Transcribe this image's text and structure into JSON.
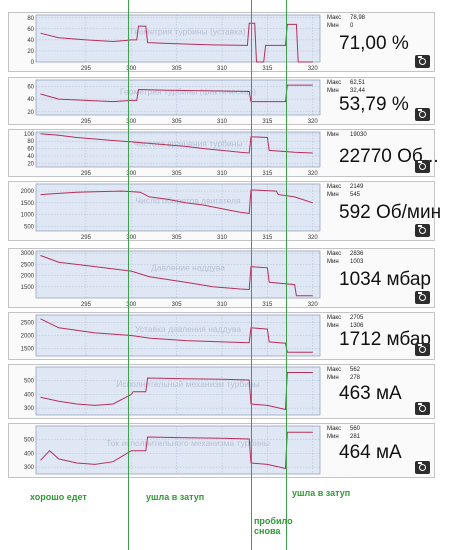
{
  "panels": [
    {
      "title": "Геометрия турбины (уставка)",
      "stats": [
        {
          "k": "Макс",
          "v": "78,98"
        },
        {
          "k": "Мин",
          "v": "0"
        }
      ],
      "value": "71,00 %",
      "yticks": [
        "80",
        "60",
        "40",
        "20",
        "0"
      ],
      "ymin": 0,
      "ymax": 85,
      "show_x": true,
      "series": [
        [
          290,
          52
        ],
        [
          292,
          44
        ],
        [
          295,
          40
        ],
        [
          298,
          37
        ],
        [
          300,
          40
        ],
        [
          300.6,
          40
        ],
        [
          300.8,
          65
        ],
        [
          301.6,
          65
        ],
        [
          301.8,
          35
        ],
        [
          305,
          33
        ],
        [
          309,
          31
        ],
        [
          312.8,
          30
        ],
        [
          313,
          70
        ],
        [
          313.6,
          70
        ],
        [
          313.8,
          0
        ],
        [
          314.6,
          0
        ],
        [
          314.8,
          30
        ],
        [
          317,
          30
        ],
        [
          317.2,
          68
        ],
        [
          318.2,
          68
        ],
        [
          318.4,
          0
        ],
        [
          320,
          0
        ]
      ]
    },
    {
      "title": "Геометрия турбины (фактическая)",
      "stats": [
        {
          "k": "Макс",
          "v": "62,51"
        },
        {
          "k": "Мин",
          "v": "32,44"
        }
      ],
      "value": "53,79 %",
      "yticks": [
        "60",
        "40",
        "20"
      ],
      "ymin": 15,
      "ymax": 70,
      "show_x": true,
      "series": [
        [
          290,
          48
        ],
        [
          292,
          40
        ],
        [
          295,
          38
        ],
        [
          298,
          36
        ],
        [
          300,
          38
        ],
        [
          300.6,
          38
        ],
        [
          300.8,
          55
        ],
        [
          304,
          54
        ],
        [
          308,
          53
        ],
        [
          313,
          52
        ],
        [
          313.2,
          36
        ],
        [
          314,
          36
        ],
        [
          317,
          36
        ],
        [
          317.2,
          62
        ],
        [
          320,
          62
        ]
      ]
    },
    {
      "title": "Частота вращения турбины",
      "stats": [
        {
          "k": "Мин",
          "v": "19030"
        }
      ],
      "value": "22770 Об...",
      "yticks": [
        "100",
        "80",
        "60",
        "40",
        "20"
      ],
      "ymin": 10,
      "ymax": 105,
      "show_x": true,
      "series": [
        [
          290,
          100
        ],
        [
          292,
          96
        ],
        [
          294,
          90
        ],
        [
          296,
          86
        ],
        [
          298,
          82
        ],
        [
          300,
          78
        ],
        [
          302,
          74
        ],
        [
          304,
          70
        ],
        [
          306,
          66
        ],
        [
          308,
          60
        ],
        [
          310,
          55
        ],
        [
          312,
          50
        ],
        [
          313,
          48
        ],
        [
          313.2,
          92
        ],
        [
          315,
          90
        ],
        [
          315.2,
          55
        ],
        [
          318,
          50
        ],
        [
          320,
          48
        ]
      ]
    },
    {
      "title": "Число оборотов двигателя",
      "stats": [
        {
          "k": "Макс",
          "v": "2149"
        },
        {
          "k": "Мин",
          "v": "545"
        }
      ],
      "value": "592 Об/мин",
      "yticks": [
        "2000",
        "1500",
        "1000",
        "500"
      ],
      "ymin": 300,
      "ymax": 2300,
      "show_x": true,
      "series": [
        [
          290,
          1850
        ],
        [
          292,
          1900
        ],
        [
          294,
          1950
        ],
        [
          297,
          1980
        ],
        [
          299,
          2000
        ],
        [
          301,
          1950
        ],
        [
          302,
          1750
        ],
        [
          304,
          1650
        ],
        [
          306,
          1500
        ],
        [
          308,
          1400
        ],
        [
          310,
          1250
        ],
        [
          312,
          1100
        ],
        [
          313,
          1050
        ],
        [
          313.2,
          2050
        ],
        [
          316,
          2000
        ],
        [
          316.2,
          1850
        ],
        [
          318,
          1750
        ],
        [
          320,
          1500
        ]
      ]
    },
    {
      "title": "Давление наддува",
      "stats": [
        {
          "k": "Макс",
          "v": "2836"
        },
        {
          "k": "Мин",
          "v": "1003"
        }
      ],
      "value": "1034 мбар",
      "yticks": [
        "3000",
        "2500",
        "2000",
        "1500"
      ],
      "ymin": 1000,
      "ymax": 3100,
      "show_x": true,
      "series": [
        [
          290,
          2900
        ],
        [
          292,
          2600
        ],
        [
          295,
          2450
        ],
        [
          298,
          2300
        ],
        [
          300,
          2200
        ],
        [
          302,
          1950
        ],
        [
          306,
          1700
        ],
        [
          309,
          1500
        ],
        [
          312,
          1400
        ],
        [
          313,
          1380
        ],
        [
          313.2,
          2400
        ],
        [
          315,
          2350
        ],
        [
          315.2,
          1700
        ],
        [
          318,
          1600
        ],
        [
          318.2,
          1100
        ],
        [
          320,
          1100
        ]
      ]
    },
    {
      "title": "Уставка давления наддува",
      "stats": [
        {
          "k": "Макс",
          "v": "2705"
        },
        {
          "k": "Мин",
          "v": "1306"
        }
      ],
      "value": "1712 мбар",
      "yticks": [
        "2500",
        "2000",
        "1500"
      ],
      "ymin": 1200,
      "ymax": 2800,
      "show_x": false,
      "series": [
        [
          290,
          2650
        ],
        [
          292,
          2300
        ],
        [
          296,
          2100
        ],
        [
          300,
          2000
        ],
        [
          302,
          1900
        ],
        [
          306,
          1800
        ],
        [
          310,
          1750
        ],
        [
          313,
          1720
        ],
        [
          313.2,
          2300
        ],
        [
          315,
          2250
        ],
        [
          315.2,
          1750
        ],
        [
          317,
          1700
        ],
        [
          317.2,
          1350
        ],
        [
          320,
          1350
        ]
      ]
    },
    {
      "title": "Исполнительный механизм турбины",
      "stats": [
        {
          "k": "Макс",
          "v": "562"
        },
        {
          "k": "Мин",
          "v": "278"
        }
      ],
      "value": "463 мА",
      "yticks": [
        "500",
        "400",
        "300"
      ],
      "ymin": 250,
      "ymax": 600,
      "show_x": false,
      "series": [
        [
          290,
          380
        ],
        [
          292,
          350
        ],
        [
          294,
          330
        ],
        [
          296,
          320
        ],
        [
          298,
          330
        ],
        [
          300,
          400
        ],
        [
          300.2,
          420
        ],
        [
          301.6,
          420
        ],
        [
          301.8,
          520
        ],
        [
          306,
          515
        ],
        [
          310,
          510
        ],
        [
          313,
          505
        ],
        [
          313.2,
          330
        ],
        [
          315,
          320
        ],
        [
          317,
          290
        ],
        [
          317.2,
          560
        ],
        [
          320,
          560
        ]
      ]
    },
    {
      "title": "Ток исполнительного механизма турбины",
      "stats": [
        {
          "k": "Макс",
          "v": "560"
        },
        {
          "k": "Мин",
          "v": "281"
        }
      ],
      "value": "464 мА",
      "yticks": [
        "500",
        "400",
        "300"
      ],
      "ymin": 250,
      "ymax": 600,
      "show_x": false,
      "series": [
        [
          290,
          350
        ],
        [
          291,
          420
        ],
        [
          292,
          360
        ],
        [
          294,
          330
        ],
        [
          296,
          320
        ],
        [
          298,
          340
        ],
        [
          300,
          420
        ],
        [
          301.6,
          420
        ],
        [
          301.8,
          520
        ],
        [
          306,
          515
        ],
        [
          310,
          510
        ],
        [
          313,
          505
        ],
        [
          313.2,
          330
        ],
        [
          315,
          320
        ],
        [
          317,
          290
        ],
        [
          317.2,
          555
        ],
        [
          320,
          555
        ]
      ]
    }
  ],
  "xticks": [
    "295",
    "300",
    "305",
    "310",
    "315",
    "320"
  ],
  "annotations": [
    {
      "text": "хорошо едет"
    },
    {
      "text": "ушла в затуп"
    },
    {
      "text": "пробило снова"
    },
    {
      "text": "ушла в затуп"
    }
  ],
  "colors": {
    "plot_bg": "#dfe7f4",
    "grid": "#9db0cc",
    "series": "#b5305a",
    "marker_line": "#3ea04a"
  }
}
